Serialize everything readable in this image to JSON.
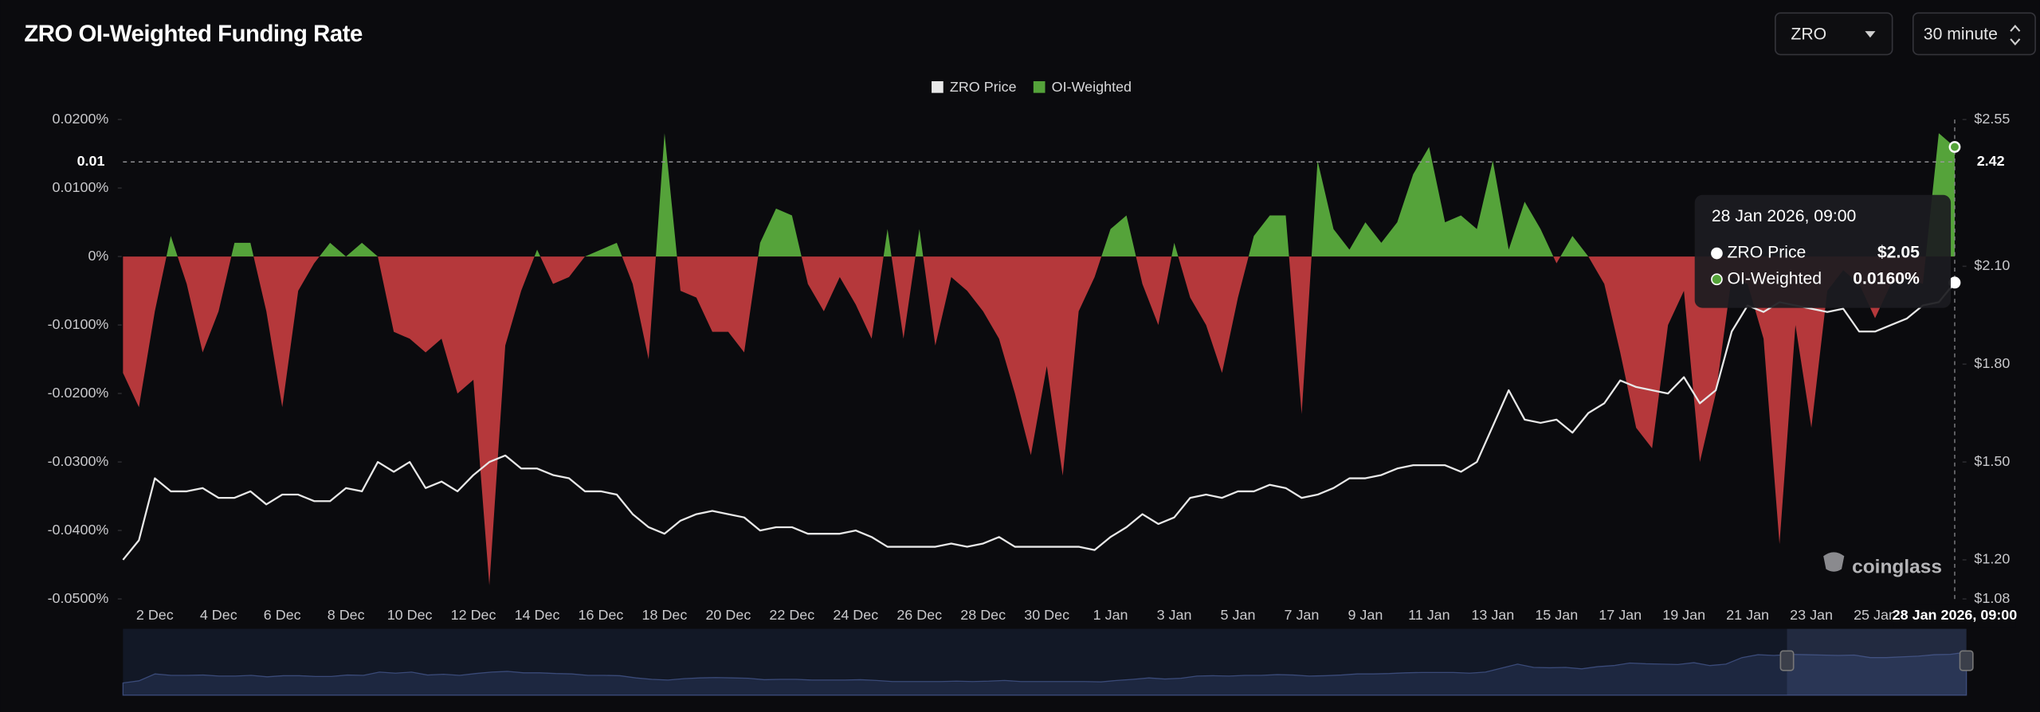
{
  "controls": {
    "symbol": "ZRO",
    "interval": "30 minute"
  },
  "watermark": "coinglass",
  "chart_data": {
    "type": "combo",
    "title": "ZRO OI-Weighted Funding Rate",
    "categories": [
      null,
      null,
      "2 Dec",
      null,
      null,
      null,
      "4 Dec",
      null,
      null,
      null,
      "6 Dec",
      null,
      null,
      null,
      "8 Dec",
      null,
      null,
      null,
      "10 Dec",
      null,
      null,
      null,
      "12 Dec",
      null,
      null,
      null,
      "14 Dec",
      null,
      null,
      null,
      "16 Dec",
      null,
      null,
      null,
      "18 Dec",
      null,
      null,
      null,
      "20 Dec",
      null,
      null,
      null,
      "22 Dec",
      null,
      null,
      null,
      "24 Dec",
      null,
      null,
      null,
      "26 Dec",
      null,
      null,
      null,
      "28 Dec",
      null,
      null,
      null,
      "30 Dec",
      null,
      null,
      null,
      "1 Jan",
      null,
      null,
      null,
      "3 Jan",
      null,
      null,
      null,
      "5 Jan",
      null,
      null,
      null,
      "7 Jan",
      null,
      null,
      null,
      "9 Jan",
      null,
      null,
      null,
      "11 Jan",
      null,
      null,
      null,
      "13 Jan",
      null,
      null,
      null,
      "15 Jan",
      null,
      null,
      null,
      "17 Jan",
      null,
      null,
      null,
      "19 Jan",
      null,
      null,
      null,
      "21 Jan",
      null,
      null,
      null,
      "23 Jan",
      null,
      null,
      null,
      "25 Jan",
      null,
      null,
      null,
      null,
      "28 Jan 2026, 09:00"
    ],
    "series": [
      {
        "name": "ZRO Price",
        "type": "line",
        "axis": "y2",
        "color": "#e8e8e8",
        "values": [
          1.2,
          1.26,
          1.45,
          1.41,
          1.41,
          1.42,
          1.39,
          1.39,
          1.41,
          1.37,
          1.4,
          1.4,
          1.38,
          1.38,
          1.42,
          1.41,
          1.5,
          1.47,
          1.5,
          1.42,
          1.44,
          1.41,
          1.46,
          1.5,
          1.52,
          1.48,
          1.48,
          1.46,
          1.45,
          1.41,
          1.41,
          1.4,
          1.34,
          1.3,
          1.28,
          1.32,
          1.34,
          1.35,
          1.34,
          1.33,
          1.29,
          1.3,
          1.3,
          1.28,
          1.28,
          1.28,
          1.29,
          1.27,
          1.24,
          1.24,
          1.24,
          1.24,
          1.25,
          1.24,
          1.25,
          1.27,
          1.24,
          1.24,
          1.24,
          1.24,
          1.24,
          1.23,
          1.27,
          1.3,
          1.34,
          1.31,
          1.33,
          1.39,
          1.4,
          1.39,
          1.41,
          1.41,
          1.43,
          1.42,
          1.39,
          1.4,
          1.42,
          1.45,
          1.45,
          1.46,
          1.48,
          1.49,
          1.49,
          1.49,
          1.47,
          1.5,
          1.61,
          1.72,
          1.63,
          1.62,
          1.63,
          1.59,
          1.65,
          1.68,
          1.75,
          1.73,
          1.72,
          1.71,
          1.76,
          1.68,
          1.72,
          1.9,
          1.98,
          1.96,
          1.99,
          1.98,
          1.97,
          1.96,
          1.97,
          1.9,
          1.9,
          1.92,
          1.94,
          1.98,
          1.99,
          2.05
        ]
      },
      {
        "name": "OI-Weighted",
        "type": "area",
        "color": "#55a33a",
        "negative_color": "#b5383b",
        "values": [
          -0.017,
          -0.022,
          -0.008,
          0.003,
          -0.004,
          -0.014,
          -0.008,
          0.002,
          0.002,
          -0.008,
          -0.022,
          -0.005,
          -0.001,
          0.002,
          0,
          0.002,
          0,
          -0.011,
          -0.012,
          -0.014,
          -0.012,
          -0.02,
          -0.018,
          -0.048,
          -0.013,
          -0.005,
          0.001,
          -0.004,
          -0.003,
          0,
          0.001,
          0.002,
          -0.004,
          -0.015,
          0.018,
          -0.005,
          -0.006,
          -0.011,
          -0.011,
          -0.014,
          0.002,
          0.007,
          0.006,
          -0.004,
          -0.008,
          -0.003,
          -0.007,
          -0.012,
          0.004,
          -0.012,
          0.004,
          -0.013,
          -0.003,
          -0.005,
          -0.008,
          -0.012,
          -0.02,
          -0.029,
          -0.016,
          -0.032,
          -0.008,
          -0.003,
          0.004,
          0.006,
          -0.004,
          -0.01,
          0.002,
          -0.006,
          -0.01,
          -0.017,
          -0.006,
          0.003,
          0.006,
          0.006,
          -0.023,
          0.014,
          0.004,
          0.001,
          0.005,
          0.002,
          0.005,
          0.012,
          0.016,
          0.005,
          0.006,
          0.004,
          0.014,
          0.001,
          0.008,
          0.004,
          -0.001,
          0.003,
          0,
          -0.004,
          -0.014,
          -0.025,
          -0.028,
          -0.01,
          -0.005,
          -0.03,
          -0.02,
          -0.003,
          -0.004,
          -0.012,
          -0.042,
          -0.01,
          -0.025,
          -0.005,
          -0.002,
          -0.004,
          -0.009,
          -0.004,
          -0.003,
          -0.004,
          0.018,
          0.016
        ]
      }
    ],
    "ylim": [
      -0.05,
      0.02
    ],
    "yticks": [
      {
        "value": 0.02,
        "label": "0.0200%"
      },
      {
        "value": 0.01,
        "label": "0.0100%"
      },
      {
        "value": 0,
        "label": "0%"
      },
      {
        "value": -0.01,
        "label": "-0.0100%"
      },
      {
        "value": -0.02,
        "label": "-0.0200%"
      },
      {
        "value": -0.03,
        "label": "-0.0300%"
      },
      {
        "value": -0.04,
        "label": "-0.0400%"
      },
      {
        "value": -0.05,
        "label": "-0.0500%"
      }
    ],
    "y2lim": [
      1.08,
      2.55
    ],
    "y2ticks": [
      {
        "value": 2.55,
        "label": "$2.55"
      },
      {
        "value": 2.1,
        "label": "$2.10"
      },
      {
        "value": 1.8,
        "label": "$1.80"
      },
      {
        "value": 1.5,
        "label": "$1.50"
      },
      {
        "value": 1.2,
        "label": "$1.20"
      },
      {
        "value": 1.08,
        "label": "$1.08"
      }
    ],
    "crosshair": {
      "y2": 2.42,
      "y_label": "0.01"
    },
    "tooltip": {
      "labels": [
        "$2.05",
        "0.0160%"
      ]
    },
    "legend": "top"
  }
}
